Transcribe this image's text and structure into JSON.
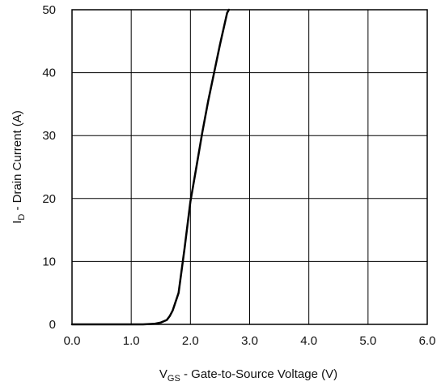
{
  "chart_data": {
    "type": "line",
    "title": "",
    "xlabel": {
      "main": "V",
      "sub": "GS",
      "rest": " - Gate-to-Source Voltage (V)"
    },
    "ylabel": {
      "main": "I",
      "sub": "D",
      "rest": " - Drain Current (A)"
    },
    "xlim": [
      0,
      6
    ],
    "ylim": [
      0,
      50
    ],
    "xticks": [
      0,
      1,
      2,
      3,
      4,
      5,
      6
    ],
    "yticks": [
      0,
      10,
      20,
      30,
      40,
      50
    ],
    "xtick_labels": [
      "0.0",
      "1.0",
      "2.0",
      "3.0",
      "4.0",
      "5.0",
      "6.0"
    ],
    "ytick_labels": [
      "0",
      "10",
      "20",
      "30",
      "40",
      "50"
    ],
    "grid": true,
    "series": [
      {
        "x": [
          0.0,
          1.0,
          1.2,
          1.4,
          1.5,
          1.6,
          1.65,
          1.7,
          1.8,
          1.9,
          2.0,
          2.1,
          2.2,
          2.3,
          2.4,
          2.5,
          2.62,
          2.65
        ],
        "y": [
          0,
          0,
          0,
          0.1,
          0.3,
          0.7,
          1.3,
          2.2,
          5.0,
          12.0,
          19.5,
          25.0,
          30.5,
          35.5,
          40.0,
          44.5,
          49.5,
          50.0
        ]
      }
    ]
  },
  "colors": {
    "line": "#000000",
    "grid": "#000000",
    "frame": "#000000"
  }
}
